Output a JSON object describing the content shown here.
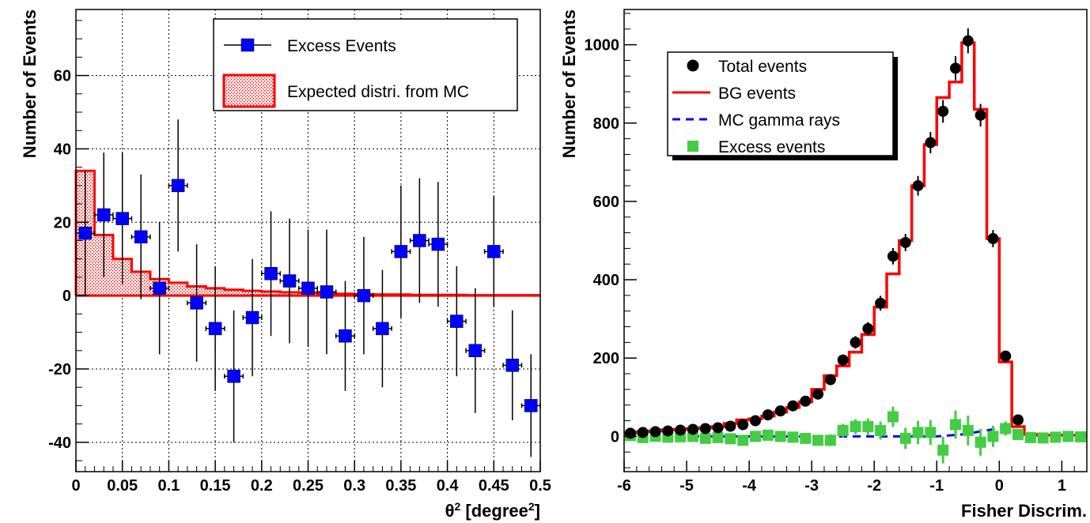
{
  "chart_data": [
    {
      "type": "scatter",
      "xlabel": "θ² [degree²]",
      "ylabel": "Number of Events",
      "xlim": [
        0,
        0.5
      ],
      "ylim": [
        -48,
        78
      ],
      "grid": true,
      "legend_position": "top-right",
      "x_ticks": [
        0,
        0.05,
        0.1,
        0.15,
        0.2,
        0.25,
        0.3,
        0.35,
        0.4,
        0.45,
        0.5
      ],
      "x_tick_labels": [
        "0",
        "0.05",
        "0.1",
        "0.15",
        "0.2",
        "0.25",
        "0.3",
        "0.35",
        "0.4",
        "0.45",
        "0.5"
      ],
      "y_ticks": [
        -40,
        -20,
        0,
        20,
        40,
        60
      ],
      "y_tick_labels": [
        "-40",
        "-20",
        "0",
        "20",
        "40",
        "60"
      ],
      "series": [
        {
          "name": "Excess Events",
          "style": "points-errorbars",
          "color": "#0000ff",
          "x": [
            0.01,
            0.03,
            0.05,
            0.07,
            0.09,
            0.11,
            0.13,
            0.15,
            0.17,
            0.19,
            0.21,
            0.23,
            0.25,
            0.27,
            0.29,
            0.31,
            0.33,
            0.35,
            0.37,
            0.39,
            0.41,
            0.43,
            0.45,
            0.47,
            0.49
          ],
          "y": [
            17,
            22,
            21,
            16,
            2,
            30,
            -2,
            -9,
            -22,
            -6,
            6,
            4,
            2,
            1,
            -11,
            0,
            -9,
            12,
            15,
            14,
            -7,
            -15,
            12,
            -19,
            -30
          ],
          "y_err": [
            17,
            17,
            18,
            17,
            18,
            18,
            16,
            17,
            18,
            16,
            17,
            17,
            16,
            17,
            15,
            16,
            16,
            18,
            17,
            17,
            15,
            17,
            15,
            15,
            14
          ],
          "x_err": 0.01
        },
        {
          "name": "Expected distri. from MC",
          "style": "hatched-histogram",
          "color": "#ff0000",
          "bin_edges": [
            0,
            0.02,
            0.04,
            0.06,
            0.08,
            0.1,
            0.12,
            0.14,
            0.16,
            0.18,
            0.2,
            0.22,
            0.24,
            0.26,
            0.28,
            0.3,
            0.32,
            0.34,
            0.36,
            0.38,
            0.4,
            0.42,
            0.44,
            0.46,
            0.48,
            0.5
          ],
          "values": [
            34,
            16.5,
            10,
            6.5,
            4.5,
            3.5,
            2.5,
            2,
            1.6,
            1.3,
            1.1,
            0.9,
            0.8,
            0.6,
            0.5,
            0.4,
            0.3,
            0.3,
            0.2,
            0.2,
            0.2,
            0.1,
            0.1,
            0.1,
            0.1
          ]
        }
      ]
    },
    {
      "type": "line",
      "xlabel": "Fisher Discrim.",
      "ylabel": "Number of Events",
      "xlim": [
        -6,
        1.4
      ],
      "ylim": [
        -90,
        1090
      ],
      "grid": false,
      "legend_position": "top-left",
      "x_ticks": [
        -6,
        -5,
        -4,
        -3,
        -2,
        -1,
        0,
        1
      ],
      "x_tick_labels": [
        "-6",
        "-5",
        "-4",
        "-3",
        "-2",
        "-1",
        "0",
        "1"
      ],
      "y_ticks": [
        0,
        200,
        400,
        600,
        800,
        1000
      ],
      "y_tick_labels": [
        "0",
        "200",
        "400",
        "600",
        "800",
        "1000"
      ],
      "series": [
        {
          "name": "Total events",
          "style": "points-errorbars",
          "color": "#000000",
          "x": [
            -5.9,
            -5.7,
            -5.5,
            -5.3,
            -5.1,
            -4.9,
            -4.7,
            -4.5,
            -4.3,
            -4.1,
            -3.9,
            -3.7,
            -3.5,
            -3.3,
            -3.1,
            -2.9,
            -2.7,
            -2.5,
            -2.3,
            -2.1,
            -1.9,
            -1.7,
            -1.5,
            -1.3,
            -1.1,
            -0.9,
            -0.7,
            -0.5,
            -0.3,
            -0.1,
            0.1,
            0.3
          ],
          "y": [
            8,
            10,
            12,
            14,
            16,
            18,
            20,
            22,
            26,
            30,
            40,
            55,
            65,
            78,
            90,
            108,
            145,
            195,
            240,
            275,
            340,
            460,
            495,
            640,
            750,
            830,
            940,
            1010,
            820,
            505,
            205,
            42
          ],
          "y_err": [
            3,
            3,
            3,
            4,
            4,
            4,
            4,
            5,
            5,
            6,
            6,
            7,
            8,
            9,
            10,
            11,
            13,
            14,
            16,
            17,
            19,
            21,
            22,
            25,
            27,
            29,
            31,
            32,
            29,
            22,
            14,
            7
          ]
        },
        {
          "name": "BG events",
          "style": "step",
          "color": "#ff0000",
          "bin_edges": [
            -6,
            -5.8,
            -5.6,
            -5.4,
            -5.2,
            -5,
            -4.8,
            -4.6,
            -4.4,
            -4.2,
            -4,
            -3.8,
            -3.6,
            -3.4,
            -3.2,
            -3,
            -2.8,
            -2.6,
            -2.4,
            -2.2,
            -2,
            -1.8,
            -1.6,
            -1.4,
            -1.2,
            -1,
            -0.8,
            -0.6,
            -0.4,
            -0.2,
            0,
            0.2,
            0.4,
            0.6,
            0.8,
            1,
            1.2,
            1.4
          ],
          "values": [
            8,
            12,
            14,
            17,
            18,
            20,
            22,
            25,
            33,
            42,
            45,
            52,
            62,
            74,
            88,
            120,
            155,
            180,
            215,
            260,
            330,
            415,
            500,
            640,
            745,
            865,
            905,
            1005,
            835,
            505,
            190,
            25,
            5,
            3,
            3,
            3,
            3
          ]
        },
        {
          "name": "MC gamma rays",
          "style": "dashed-line",
          "color": "#0000ff",
          "x": [
            -6,
            -1,
            -0.6,
            -0.2,
            0.1,
            0.4,
            1.4
          ],
          "y": [
            0,
            0,
            5,
            15,
            25,
            5,
            0
          ]
        },
        {
          "name": "Excess events",
          "style": "points-errorbars",
          "color": "#44cc44",
          "x": [
            -5.9,
            -5.7,
            -5.5,
            -5.3,
            -5.1,
            -4.9,
            -4.7,
            -4.5,
            -4.3,
            -4.1,
            -3.9,
            -3.7,
            -3.5,
            -3.3,
            -3.1,
            -2.9,
            -2.7,
            -2.5,
            -2.3,
            -2.1,
            -1.9,
            -1.7,
            -1.5,
            -1.3,
            -1.1,
            -0.9,
            -0.7,
            -0.5,
            -0.3,
            -0.1,
            0.1,
            0.3,
            0.5,
            0.7,
            0.9,
            1.1,
            1.3
          ],
          "y": [
            2,
            -3,
            0,
            -2,
            -1,
            0,
            -5,
            -3,
            -6,
            -10,
            0,
            3,
            0,
            -2,
            -5,
            -10,
            -10,
            15,
            25,
            25,
            15,
            50,
            -5,
            10,
            10,
            -35,
            30,
            15,
            -15,
            0,
            20,
            5,
            -3,
            -4,
            -2,
            0,
            -1
          ],
          "y_err": [
            5,
            5,
            5,
            5,
            6,
            6,
            6,
            6,
            7,
            7,
            8,
            9,
            10,
            11,
            12,
            13,
            15,
            17,
            19,
            21,
            23,
            26,
            27,
            30,
            32,
            34,
            36,
            38,
            34,
            27,
            18,
            10,
            6,
            5,
            5,
            5,
            5
          ]
        }
      ]
    }
  ]
}
